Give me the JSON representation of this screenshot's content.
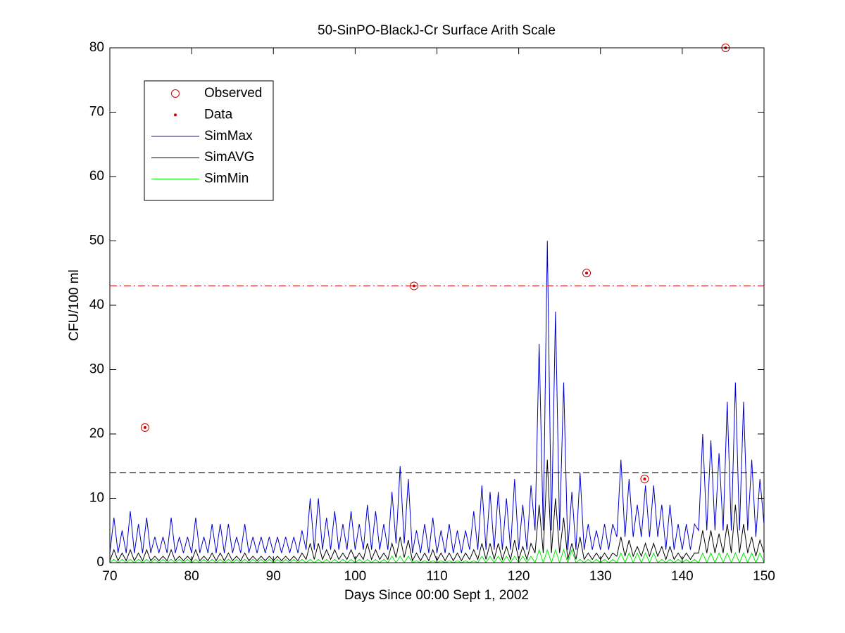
{
  "chart_data": {
    "type": "line",
    "title": "50-SinPO-BlackJ-Cr Surface Arith Scale",
    "xlabel": "Days Since 00:00 Sept 1, 2002",
    "ylabel": "CFU/100 ml",
    "xlim": [
      70,
      150
    ],
    "ylim": [
      0,
      80
    ],
    "xticks": [
      70,
      80,
      90,
      100,
      110,
      120,
      130,
      140,
      150
    ],
    "yticks": [
      0,
      10,
      20,
      30,
      40,
      50,
      60,
      70,
      80
    ],
    "legend_position": "upper left",
    "x": [
      70,
      70.5,
      71,
      71.5,
      72,
      72.5,
      73,
      73.5,
      74,
      74.5,
      75,
      75.5,
      76,
      76.5,
      77,
      77.5,
      78,
      78.5,
      79,
      79.5,
      80,
      80.5,
      81,
      81.5,
      82,
      82.5,
      83,
      83.5,
      84,
      84.5,
      85,
      85.5,
      86,
      86.5,
      87,
      87.5,
      88,
      88.5,
      89,
      89.5,
      90,
      90.5,
      91,
      91.5,
      92,
      92.5,
      93,
      93.5,
      94,
      94.5,
      95,
      95.5,
      96,
      96.5,
      97,
      97.5,
      98,
      98.5,
      99,
      99.5,
      100,
      100.5,
      101,
      101.5,
      102,
      102.5,
      103,
      103.5,
      104,
      104.5,
      105,
      105.5,
      106,
      106.5,
      107,
      107.5,
      108,
      108.5,
      109,
      109.5,
      110,
      110.5,
      111,
      111.5,
      112,
      112.5,
      113,
      113.5,
      114,
      114.5,
      115,
      115.5,
      116,
      116.5,
      117,
      117.5,
      118,
      118.5,
      119,
      119.5,
      120,
      120.5,
      121,
      121.5,
      122,
      122.5,
      123,
      123.5,
      124,
      124.5,
      125,
      125.5,
      126,
      126.5,
      127,
      127.5,
      128,
      128.5,
      129,
      129.5,
      130,
      130.5,
      131,
      131.5,
      132,
      132.5,
      133,
      133.5,
      134,
      134.5,
      135,
      135.5,
      136,
      136.5,
      137,
      137.5,
      138,
      138.5,
      139,
      139.5,
      140,
      140.5,
      141,
      141.5,
      142,
      142.5,
      143,
      143.5,
      144,
      144.5,
      145,
      145.5,
      146,
      146.5,
      147,
      147.5,
      148,
      148.5,
      149,
      149.5,
      150
    ],
    "series": [
      {
        "name": "SimMax",
        "color": "#0000cc",
        "values": [
          1.5,
          7,
          1.5,
          5,
          1.5,
          8,
          1.5,
          6,
          1.5,
          7,
          1.5,
          4,
          1.5,
          4,
          1.5,
          7,
          1.5,
          4,
          1.5,
          4,
          1.5,
          7,
          1.5,
          4,
          1.5,
          6,
          1.5,
          6,
          1.5,
          6,
          1.5,
          4,
          1.5,
          6,
          1.5,
          4,
          1.5,
          4,
          1.5,
          4,
          1.5,
          4,
          1.5,
          4,
          1.5,
          4,
          1.5,
          5,
          2,
          10,
          2,
          10,
          2,
          7,
          2,
          8,
          2,
          6,
          2,
          8,
          2,
          6,
          2,
          9,
          2,
          8,
          2,
          6,
          2,
          11,
          3,
          15,
          3,
          13,
          1.5,
          5,
          1.5,
          6,
          1.5,
          7,
          1.5,
          5,
          1.5,
          6,
          1.5,
          5,
          1.5,
          5,
          2,
          8,
          2,
          12,
          2,
          11,
          2,
          11,
          2,
          10,
          2,
          13,
          2,
          9,
          2,
          12,
          5,
          34,
          5,
          50,
          5,
          39,
          5,
          28,
          2,
          11,
          2,
          14,
          2,
          6,
          2,
          5,
          2,
          6,
          2,
          6,
          4,
          16,
          4,
          13,
          4,
          9,
          4,
          12,
          4,
          12,
          4,
          9,
          2,
          9,
          2,
          6,
          2,
          6,
          2,
          6,
          5,
          20,
          5,
          19,
          5,
          17,
          5,
          25,
          5,
          28,
          5,
          25,
          5,
          16,
          4,
          13,
          6
        ]
      },
      {
        "name": "SimAVG",
        "color": "#000000",
        "values": [
          0.3,
          2,
          0.3,
          1.5,
          0.3,
          2,
          0.3,
          1.5,
          0.3,
          2,
          0.3,
          1,
          0.3,
          1,
          0.3,
          2,
          0.3,
          1,
          0.3,
          1,
          0.3,
          2,
          0.3,
          1,
          0.3,
          1.5,
          0.3,
          1.5,
          0.3,
          1.5,
          0.3,
          1,
          0.3,
          1.5,
          0.3,
          1,
          0.3,
          1,
          0.3,
          1,
          0.3,
          1,
          0.3,
          1,
          0.3,
          1,
          0.3,
          1.5,
          0.5,
          3,
          0.5,
          3,
          0.5,
          2,
          0.5,
          2,
          0.5,
          1.5,
          0.5,
          2,
          0.5,
          1.5,
          0.5,
          3,
          0.5,
          2,
          0.5,
          1.5,
          0.5,
          3,
          0.8,
          4,
          0.8,
          3.5,
          0.3,
          1.5,
          0.3,
          1.5,
          0.3,
          2,
          0.3,
          1.5,
          0.3,
          1.5,
          0.3,
          1.5,
          0.3,
          1.5,
          0.5,
          2,
          0.5,
          3,
          0.5,
          3,
          0.5,
          3,
          0.5,
          2.5,
          0.5,
          3.5,
          0.5,
          2.5,
          0.5,
          3,
          1.5,
          9,
          1.5,
          16,
          1.5,
          10,
          1.5,
          7,
          0.5,
          3,
          0.5,
          4,
          0.5,
          1.5,
          0.5,
          1.5,
          0.5,
          1.5,
          0.5,
          1.5,
          1,
          4,
          1,
          3.5,
          1,
          2.5,
          1,
          3,
          1,
          3,
          1,
          2.5,
          0.5,
          2.5,
          0.5,
          1.5,
          0.5,
          1.5,
          0.5,
          1.5,
          1.5,
          5,
          1.5,
          5,
          1.5,
          4.5,
          1.5,
          6,
          1.5,
          9,
          1.5,
          6,
          1.5,
          4,
          1,
          3.5,
          1.5
        ]
      },
      {
        "name": "SimMin",
        "color": "#00ee00",
        "values": [
          0,
          0.5,
          0,
          0.5,
          0,
          0.5,
          0,
          0.5,
          0,
          0.5,
          0,
          0.5,
          0,
          0.5,
          0,
          0.5,
          0,
          0.5,
          0,
          0.5,
          0,
          0.5,
          0,
          0.5,
          0,
          0.5,
          0,
          0.5,
          0,
          0.5,
          0,
          0.5,
          0,
          0.5,
          0,
          0.5,
          0,
          0.5,
          0,
          0.5,
          0,
          0.5,
          0,
          0.5,
          0,
          0.5,
          0,
          0.5,
          0,
          0.5,
          0,
          0.5,
          0,
          0.5,
          0,
          0.5,
          0,
          0.5,
          0,
          0.5,
          0,
          0.5,
          0,
          0.5,
          0,
          0.5,
          0,
          0.5,
          0,
          1,
          0,
          1,
          0,
          1,
          0,
          0.3,
          0,
          0.3,
          0,
          0.3,
          0,
          0.3,
          0,
          0.3,
          0,
          0.3,
          0,
          0.3,
          0,
          0.3,
          0,
          1,
          0,
          1,
          0,
          1,
          0,
          1,
          0,
          1,
          0,
          1,
          0,
          1,
          0,
          2,
          0,
          2,
          0,
          2,
          0,
          2,
          0,
          2,
          0,
          0.5,
          0,
          0.5,
          0,
          0.5,
          0,
          0.5,
          0,
          0.5,
          0,
          1.5,
          0,
          1.5,
          0,
          1.5,
          0,
          1.5,
          0,
          1.5,
          0,
          0.5,
          0,
          0.5,
          0,
          0.5,
          0,
          0.5,
          0,
          0.5,
          0,
          1.5,
          0,
          1.5,
          0,
          1.5,
          0,
          1.5,
          0,
          1.5,
          0,
          1.5,
          0,
          1.5,
          0,
          1.5,
          0
        ]
      }
    ],
    "scatter_series": [
      {
        "name": "Observed",
        "marker": "circle",
        "color": "#cc0000",
        "x": [
          74.3,
          107.2,
          128.3,
          135.4,
          145.3
        ],
        "values": [
          21,
          43,
          45,
          13,
          80
        ]
      },
      {
        "name": "Data",
        "marker": "dot",
        "color": "#cc0000",
        "x": [
          74.3,
          107.2,
          128.3,
          135.4,
          145.3
        ],
        "values": [
          21,
          43,
          45,
          13,
          80
        ]
      }
    ],
    "reference_lines": [
      {
        "value": 43,
        "color": "#cc0000",
        "style": "dashdot"
      },
      {
        "value": 14,
        "color": "#000000",
        "style": "dashed"
      }
    ]
  }
}
